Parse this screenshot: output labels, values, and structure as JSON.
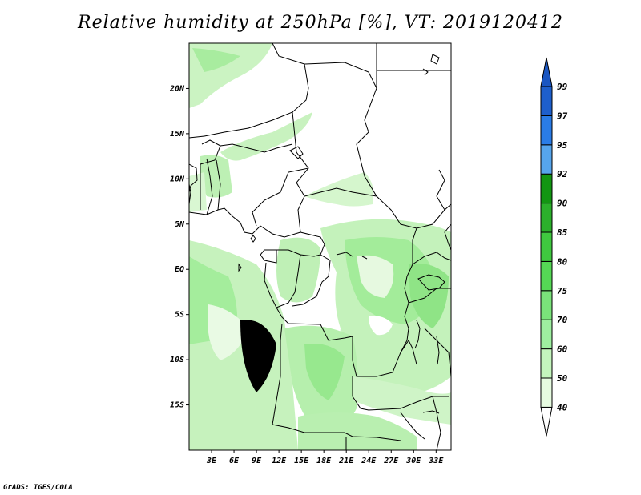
{
  "title": "Relative humidity at 250hPa [%], VT: 2019120412",
  "credit": "GrADS: IGES/COLA",
  "map": {
    "lon_range": [
      0,
      35
    ],
    "lat_range": [
      -20,
      25
    ],
    "lat_ticks": [
      {
        "value": 20,
        "label": "20N"
      },
      {
        "value": 15,
        "label": "15N"
      },
      {
        "value": 10,
        "label": "10N"
      },
      {
        "value": 5,
        "label": "5N"
      },
      {
        "value": 0,
        "label": "EQ"
      },
      {
        "value": -5,
        "label": "5S"
      },
      {
        "value": -10,
        "label": "10S"
      },
      {
        "value": -15,
        "label": "15S"
      }
    ],
    "lon_ticks": [
      {
        "value": 3,
        "label": "3E"
      },
      {
        "value": 6,
        "label": "6E"
      },
      {
        "value": 9,
        "label": "9E"
      },
      {
        "value": 12,
        "label": "12E"
      },
      {
        "value": 15,
        "label": "15E"
      },
      {
        "value": 18,
        "label": "18E"
      },
      {
        "value": 21,
        "label": "21E"
      },
      {
        "value": 24,
        "label": "24E"
      },
      {
        "value": 27,
        "label": "27E"
      },
      {
        "value": 30,
        "label": "30E"
      },
      {
        "value": 33,
        "label": "33E"
      }
    ]
  },
  "colorbar": {
    "levels": [
      "40",
      "50",
      "60",
      "70",
      "75",
      "80",
      "85",
      "90",
      "92",
      "95",
      "97",
      "99"
    ],
    "colors": [
      "#ffffff",
      "#e6fbe0",
      "#c4f5bd",
      "#9eefa0",
      "#7ae37a",
      "#55d855",
      "#3fc83f",
      "#2bb02b",
      "#129612",
      "#56a5ec",
      "#2a7ce6",
      "#1e5fcc"
    ],
    "top_arrow_color": "#1a56c2",
    "bottom_arrow_color": "#ffffff"
  }
}
